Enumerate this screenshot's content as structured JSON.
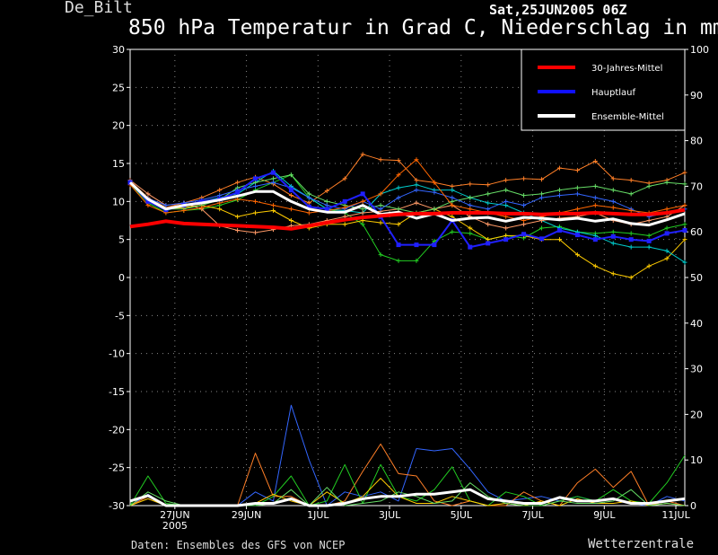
{
  "header": {
    "station": "De_Bilt",
    "run": "Sat,25JUN2005 06Z",
    "title": "850 hPa Temperatur in Grad C, Niederschlag in mm"
  },
  "footer": {
    "source": "Daten: Ensembles des GFS von NCEP",
    "brand": "Wetterzentrale"
  },
  "chart_data": {
    "type": "line",
    "title": "850 hPa Temperatur in Grad C, Niederschlag in mm",
    "x_start": "2005-06-25T06:00",
    "x_step_hours": 12,
    "x_ticks": [
      {
        "x": 2.5,
        "label": "27JUN",
        "sub": "2005"
      },
      {
        "x": 6.5,
        "label": "29JUN"
      },
      {
        "x": 10.5,
        "label": "1JUL"
      },
      {
        "x": 14.5,
        "label": "3JUL"
      },
      {
        "x": 18.5,
        "label": "5JUL"
      },
      {
        "x": 22.5,
        "label": "7JUL"
      },
      {
        "x": 26.5,
        "label": "9JUL"
      },
      {
        "x": 30.5,
        "label": "11JUL"
      }
    ],
    "ylim_left": [
      -30,
      30
    ],
    "ylim_right": [
      0,
      100
    ],
    "y_ticks_left": [
      30,
      25,
      20,
      15,
      10,
      5,
      0,
      -5,
      -10,
      -15,
      -20,
      -25,
      -30
    ],
    "y_ticks_right": [
      100,
      90,
      80,
      70,
      60,
      50,
      40,
      30,
      20,
      10,
      0
    ],
    "grid": true,
    "legend_position": "top-right",
    "legend": [
      {
        "name": "30-Jahres-Mittel",
        "color": "#ff0000"
      },
      {
        "name": "Hauptlauf",
        "color": "#1010ff"
      },
      {
        "name": "Ensemble-Mittel",
        "color": "#ffffff"
      }
    ],
    "temperature_series": [
      {
        "name": "30-Jahres-Mittel",
        "color": "#ff0000",
        "width": 4,
        "values": [
          6.7,
          7.0,
          7.4,
          7.1,
          7.0,
          6.9,
          6.8,
          6.7,
          6.6,
          6.4,
          6.8,
          7.2,
          7.6,
          7.9,
          8.1,
          8.3,
          8.4,
          8.4,
          8.5,
          8.5,
          8.5,
          8.4,
          8.4,
          8.3,
          8.4,
          8.4,
          8.5,
          8.4,
          8.3,
          8.3,
          8.5,
          8.9
        ]
      },
      {
        "name": "Ensemble-Mittel",
        "color": "#ffffff",
        "width": 3,
        "values": [
          12.5,
          10.3,
          9.0,
          9.5,
          9.8,
          10.2,
          10.7,
          11.3,
          11.3,
          10.0,
          9.0,
          8.6,
          8.6,
          9.5,
          8.3,
          8.6,
          7.8,
          8.4,
          7.5,
          7.8,
          7.9,
          7.4,
          7.9,
          7.8,
          7.6,
          7.8,
          7.4,
          7.7,
          7.1,
          6.9,
          7.6,
          8.4
        ]
      },
      {
        "name": "Hauptlauf",
        "color": "#2020ff",
        "width": 2,
        "markers": true,
        "values": [
          12.5,
          10.0,
          8.9,
          9.5,
          10.0,
          10.3,
          11.2,
          13.0,
          13.8,
          11.5,
          9.3,
          9.0,
          10.0,
          11.0,
          8.0,
          4.3,
          4.3,
          4.3,
          7.5,
          4.0,
          4.5,
          5.0,
          5.7,
          5.1,
          6.2,
          5.6,
          5.0,
          5.4,
          5.0,
          4.8,
          5.8,
          6.2
        ]
      },
      {
        "name": "m1",
        "color": "#ff7f27",
        "width": 1,
        "markers": true,
        "values": [
          12.7,
          10.5,
          9.2,
          9.8,
          10.5,
          11.5,
          12.5,
          13.2,
          12.3,
          10.8,
          9.8,
          11.4,
          13.0,
          16.2,
          15.5,
          15.4,
          12.8,
          12.5,
          12.0,
          12.3,
          12.2,
          12.8,
          13.0,
          12.9,
          14.4,
          14.1,
          15.3,
          13.0,
          12.8,
          12.4,
          12.8,
          13.8
        ]
      },
      {
        "name": "m2",
        "color": "#22cc22",
        "width": 1,
        "markers": true,
        "values": [
          12.3,
          9.8,
          8.5,
          8.8,
          9.0,
          9.5,
          10.2,
          11.5,
          12.5,
          13.5,
          10.5,
          9.0,
          8.5,
          7.0,
          3.0,
          2.2,
          2.2,
          4.8,
          6.0,
          5.8,
          5.0,
          5.5,
          5.2,
          6.5,
          6.7,
          6.0,
          5.8,
          6.0,
          5.8,
          5.5,
          6.5,
          7.0
        ]
      },
      {
        "name": "m3",
        "color": "#ffcc00",
        "width": 1,
        "markers": true,
        "values": [
          12.6,
          10.2,
          9.0,
          9.2,
          9.5,
          9.0,
          8.0,
          8.5,
          8.8,
          7.5,
          6.5,
          7.0,
          7.0,
          7.5,
          7.2,
          7.0,
          8.5,
          9.0,
          8.0,
          6.5,
          5.0,
          5.5,
          5.5,
          5.0,
          5.0,
          3.0,
          1.5,
          0.5,
          0.0,
          1.5,
          2.5,
          5.0
        ]
      },
      {
        "name": "m4",
        "color": "#00cccc",
        "width": 1,
        "markers": true,
        "values": [
          12.4,
          10.0,
          8.8,
          9.5,
          10.0,
          10.5,
          11.0,
          12.5,
          14.0,
          12.0,
          10.5,
          9.0,
          8.8,
          8.5,
          11.0,
          11.8,
          12.2,
          11.5,
          11.5,
          10.5,
          9.8,
          9.5,
          8.5,
          7.5,
          6.5,
          6.0,
          5.5,
          4.5,
          4.0,
          4.0,
          3.5,
          2.0
        ]
      },
      {
        "name": "m5",
        "color": "#ff9966",
        "width": 1,
        "markers": true,
        "values": [
          12.8,
          11.0,
          9.5,
          9.8,
          9.0,
          6.8,
          6.2,
          5.9,
          6.3,
          6.8,
          7.0,
          7.5,
          8.0,
          8.5,
          8.7,
          9.0,
          9.8,
          9.0,
          9.5,
          8.0,
          7.0,
          6.5,
          7.0,
          7.5,
          7.8,
          8.0,
          8.5,
          7.5,
          7.0,
          7.5,
          8.0,
          9.5
        ]
      },
      {
        "name": "m6",
        "color": "#66dd66",
        "width": 1,
        "markers": true,
        "values": [
          12.5,
          10.0,
          9.0,
          9.0,
          9.5,
          10.2,
          11.8,
          12.5,
          13.0,
          13.5,
          11.0,
          10.0,
          9.5,
          9.0,
          9.5,
          9.0,
          8.5,
          9.0,
          10.0,
          10.5,
          11.0,
          11.5,
          10.8,
          11.0,
          11.5,
          11.8,
          12.0,
          11.5,
          11.0,
          12.0,
          12.5,
          12.3
        ]
      },
      {
        "name": "m7",
        "color": "#3366ff",
        "width": 1,
        "markers": true,
        "values": [
          12.6,
          10.4,
          9.5,
          9.8,
          10.2,
          10.8,
          11.5,
          12.0,
          12.5,
          11.8,
          10.5,
          9.5,
          9.0,
          10.0,
          9.0,
          10.5,
          11.5,
          11.2,
          10.5,
          9.5,
          9.0,
          10.0,
          9.5,
          10.5,
          10.8,
          11.0,
          10.5,
          10.0,
          9.0,
          8.0,
          8.5,
          9.0
        ]
      },
      {
        "name": "m8",
        "color": "#ff6600",
        "width": 1,
        "markers": true,
        "values": [
          12.2,
          9.5,
          8.5,
          8.8,
          9.2,
          9.8,
          10.3,
          10.0,
          9.5,
          9.0,
          8.5,
          8.8,
          9.2,
          10.0,
          11.0,
          13.5,
          15.5,
          12.5,
          9.5,
          9.0,
          8.5,
          8.0,
          7.5,
          8.0,
          8.5,
          9.0,
          9.5,
          9.2,
          8.8,
          8.5,
          9.0,
          9.5
        ]
      }
    ],
    "precip_series": [
      {
        "name": "Ensemble-Mittel",
        "color": "#ffffff",
        "width": 3,
        "values": [
          1.0,
          2.2,
          0,
          0,
          0,
          0,
          0,
          0.5,
          0.5,
          1.5,
          0,
          0,
          0.5,
          1.5,
          2.0,
          2.0,
          2.5,
          2.5,
          3.0,
          3.5,
          1.5,
          1.0,
          0.5,
          0.5,
          1.8,
          1.0,
          1.0,
          1.5,
          0.5,
          0.5,
          1.0,
          1.5
        ]
      },
      {
        "name": "p1",
        "color": "#3366ff",
        "width": 1,
        "values": [
          0,
          2.5,
          0,
          0,
          0,
          0,
          0,
          3.0,
          1.0,
          22.0,
          10.0,
          0,
          3.0,
          2.0,
          3.0,
          1.0,
          12.5,
          12.0,
          12.5,
          8.0,
          3.0,
          1.0,
          1.5,
          2.0,
          1.0,
          2.0,
          1.0,
          1.5,
          0.5,
          0.0,
          2.0,
          1.0
        ]
      },
      {
        "name": "p2",
        "color": "#ff7f27",
        "width": 1,
        "values": [
          0,
          2.0,
          0,
          0,
          0,
          0,
          0,
          11.5,
          2.0,
          2.0,
          0,
          0,
          1.0,
          7.5,
          13.5,
          7.0,
          6.5,
          1.0,
          0,
          1.0,
          0,
          0,
          3.0,
          1.0,
          0,
          5.0,
          8.0,
          4.0,
          7.5,
          0,
          1.0,
          0
        ]
      },
      {
        "name": "p3",
        "color": "#22cc22",
        "width": 1,
        "values": [
          0,
          6.5,
          0.5,
          0,
          0,
          0,
          0,
          0,
          2.0,
          6.5,
          0,
          1.0,
          9.0,
          0.5,
          9.0,
          2.0,
          1.0,
          3.5,
          8.5,
          1.0,
          0,
          3.0,
          2.0,
          0,
          1.0,
          2.0,
          1.0,
          3.5,
          1.0,
          0.5,
          5.0,
          11.0
        ]
      },
      {
        "name": "p4",
        "color": "#ffcc00",
        "width": 1,
        "values": [
          0,
          1.5,
          0,
          0,
          0,
          0,
          0,
          0.5,
          2.5,
          1.0,
          0,
          3.0,
          0.5,
          2.0,
          6.0,
          2.0,
          0.5,
          0.5,
          2.0,
          1.0,
          0,
          0.5,
          0,
          1.0,
          0,
          1.5,
          0.5,
          0.5,
          1.0,
          0,
          0.5,
          0
        ]
      },
      {
        "name": "p5",
        "color": "#66dd66",
        "width": 1,
        "values": [
          0,
          3.0,
          1.0,
          0,
          0,
          0,
          0,
          0,
          0.5,
          3.5,
          0,
          4.0,
          0,
          0.5,
          1.0,
          3.0,
          2.0,
          0.5,
          1.0,
          5.0,
          2.0,
          0.5,
          0,
          0,
          1.0,
          0.5,
          0.5,
          1.0,
          3.5,
          0,
          0.5,
          0
        ]
      }
    ]
  }
}
